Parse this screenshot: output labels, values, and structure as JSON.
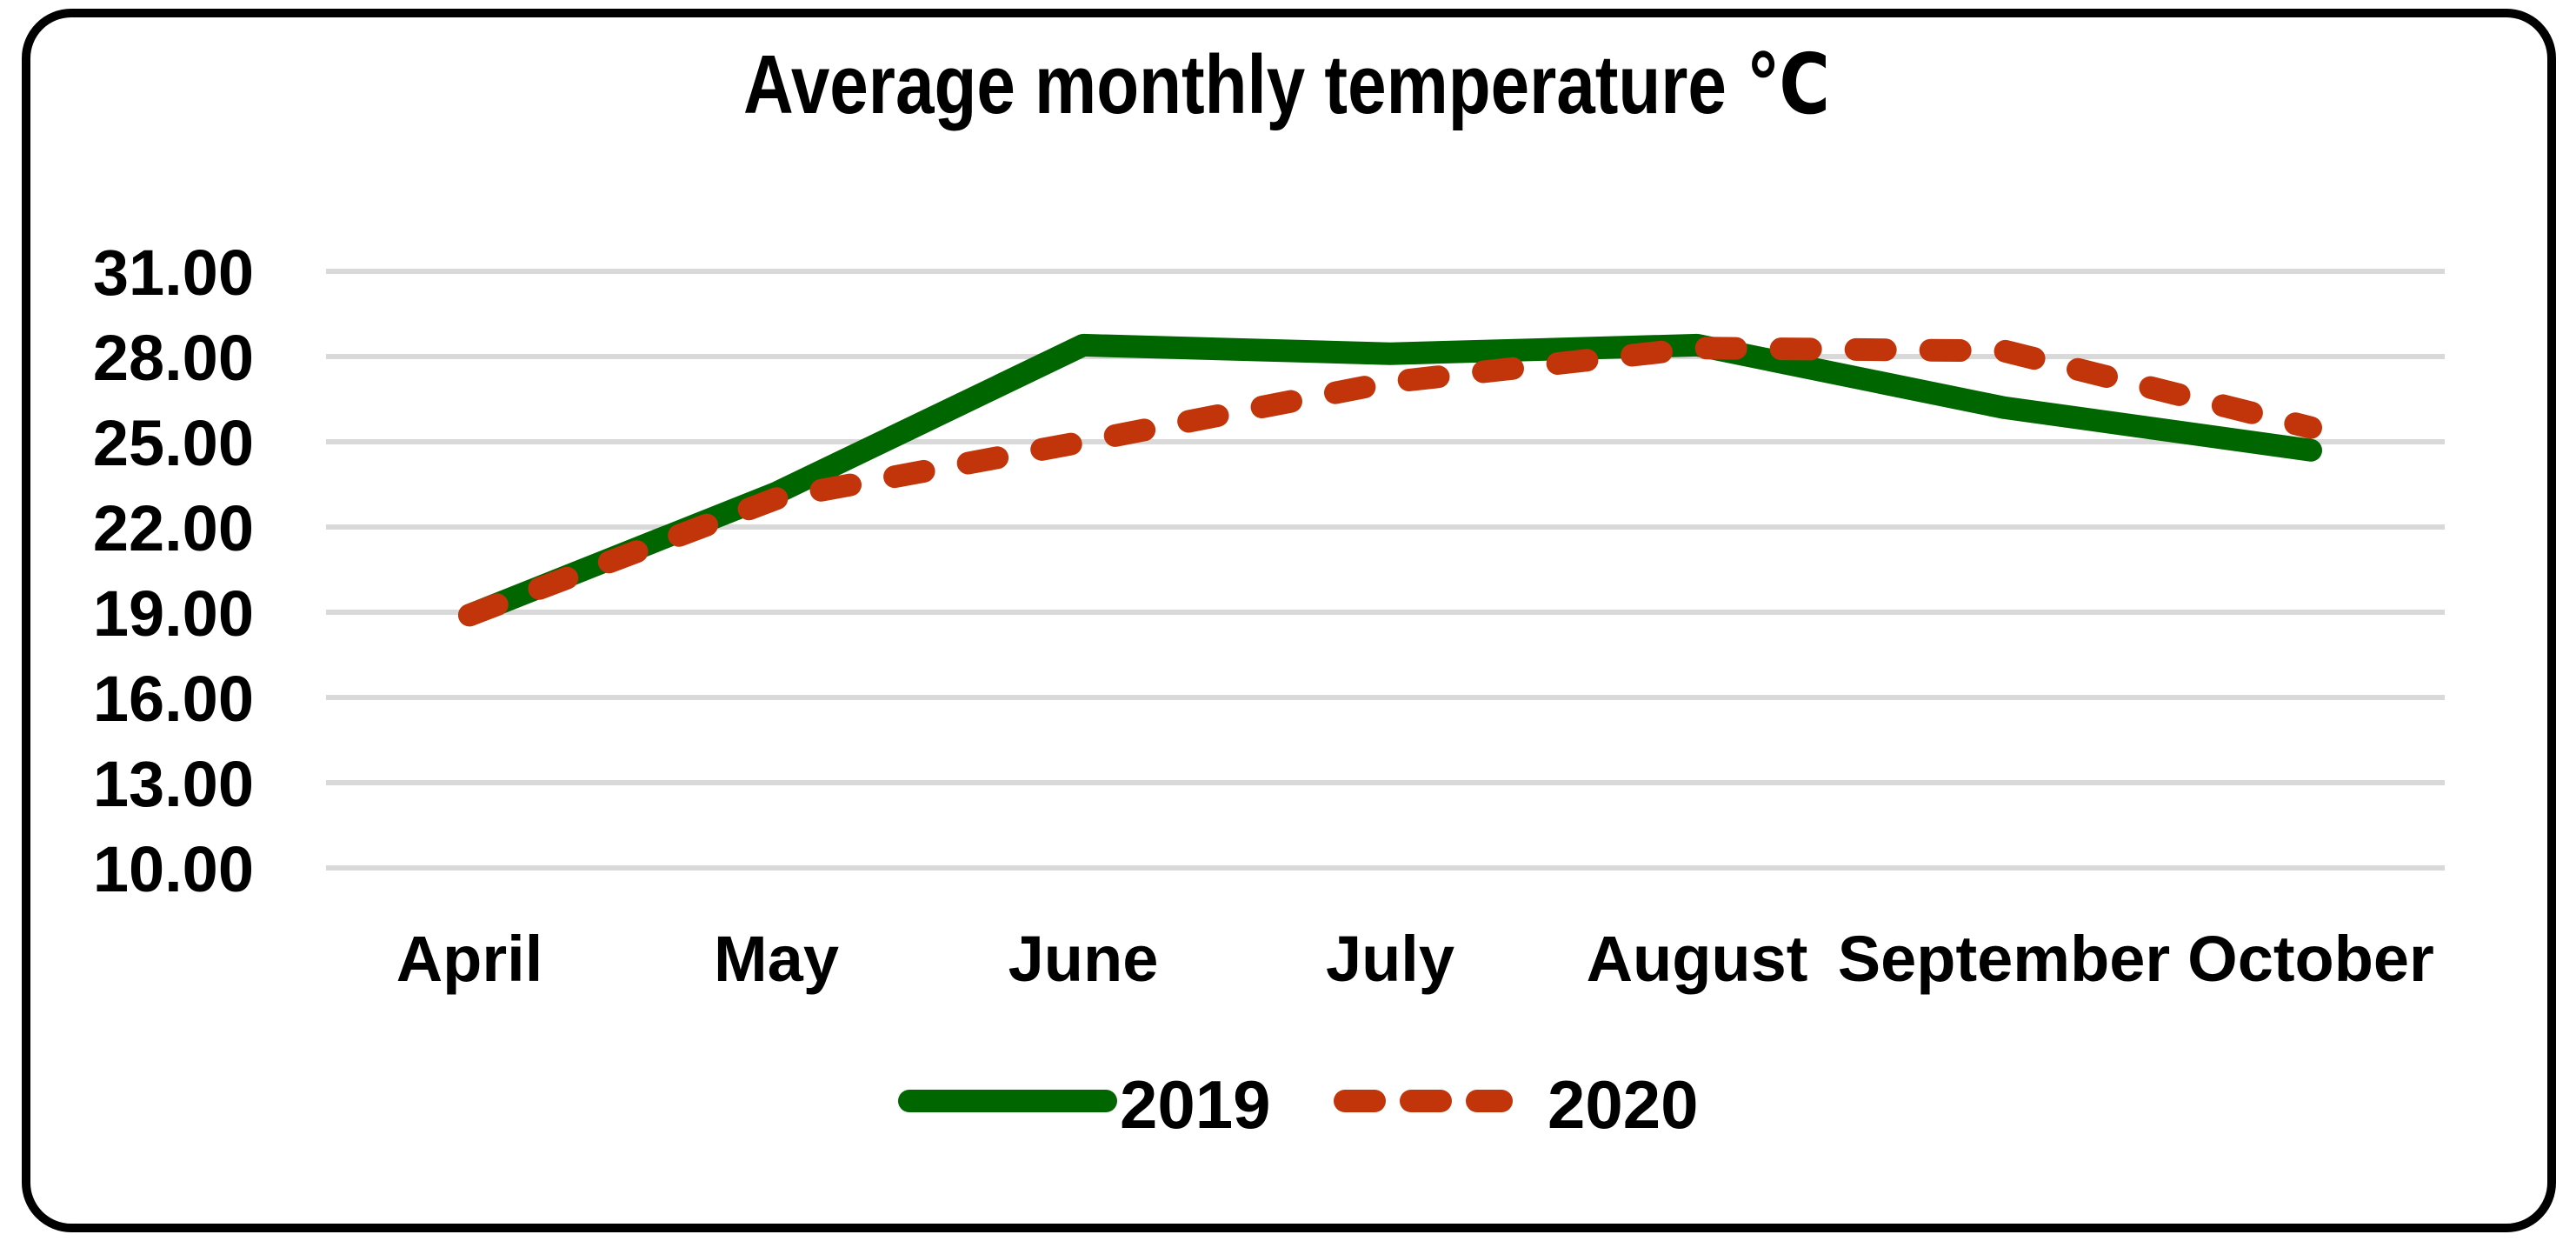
{
  "card": {
    "background": "#ffffff",
    "border_color": "#000000"
  },
  "chart_data": {
    "type": "line",
    "title": "Average monthly temperature ℃",
    "categories": [
      "April",
      "May",
      "June",
      "July",
      "August",
      "September",
      "October"
    ],
    "series": [
      {
        "name": "2019",
        "color": "#006600",
        "style": "solid",
        "values": [
          18.9,
          23.2,
          28.4,
          28.1,
          28.4,
          26.2,
          24.7
        ]
      },
      {
        "name": "2020",
        "color": "#C23409",
        "style": "dashed",
        "values": [
          18.9,
          23.0,
          25.0,
          27.1,
          28.3,
          28.2,
          25.5
        ]
      }
    ],
    "yticks": [
      "31.00",
      "28.00",
      "25.00",
      "22.00",
      "19.00",
      "16.00",
      "13.00",
      "10.00"
    ],
    "ylim": [
      10,
      31
    ],
    "ytick_step": 3,
    "xlabel": "",
    "ylabel": "",
    "grid": true,
    "gridline_color": "#D9D9D9",
    "legend_position": "bottom"
  }
}
